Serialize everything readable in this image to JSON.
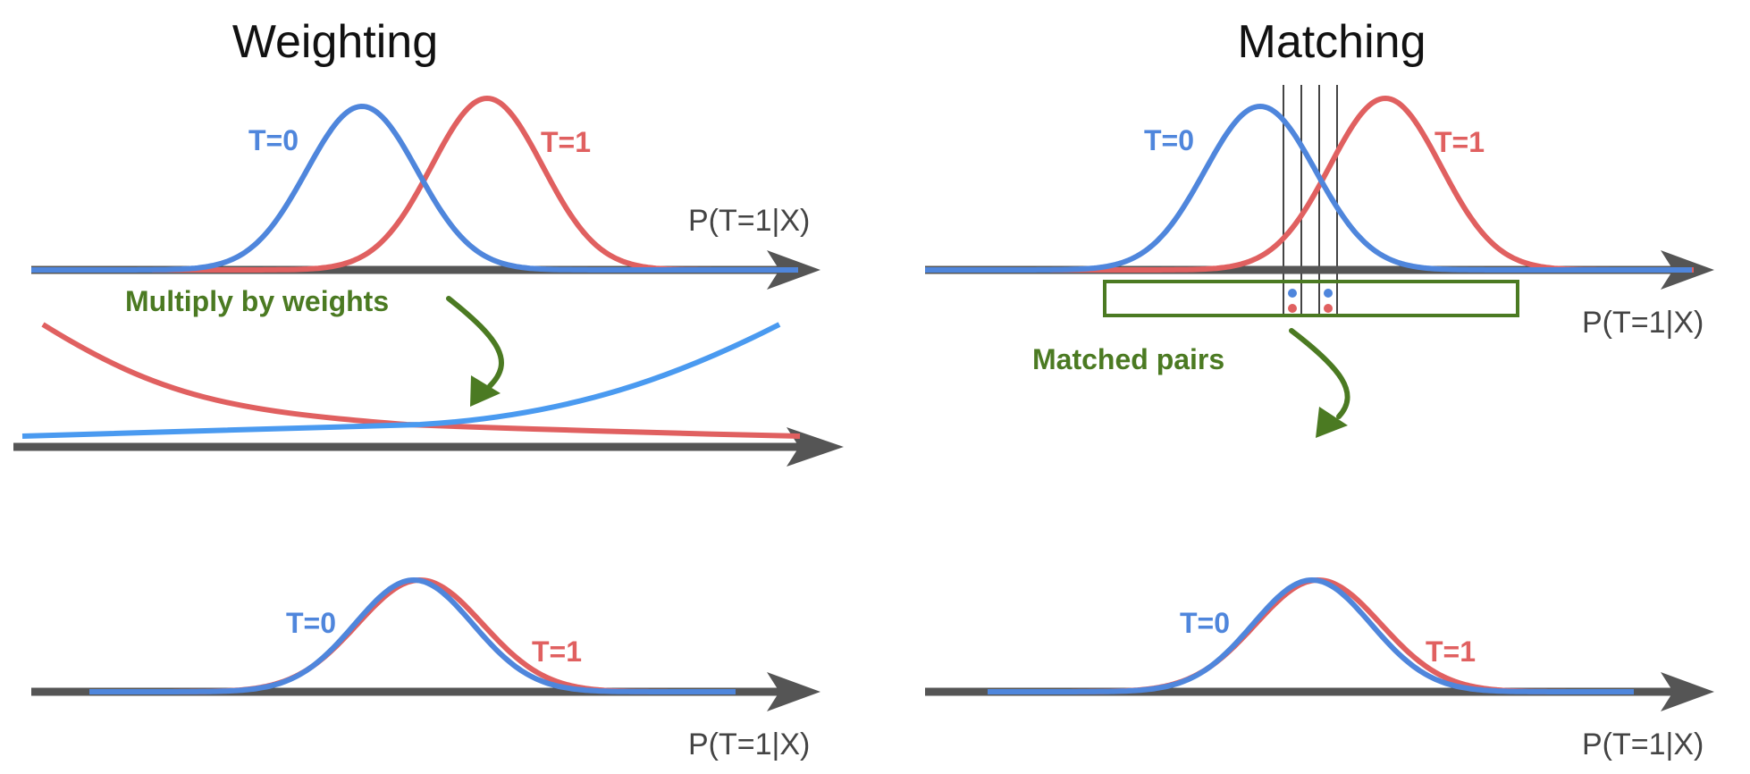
{
  "colors": {
    "blue": "#4f86dc",
    "red": "#e06060",
    "weight_blue": "#4a9af0",
    "green": "#4b7a22",
    "axis": "#555555",
    "vline": "#444444"
  },
  "weighting": {
    "title": "Weighting",
    "top": {
      "t0_label": "T=0",
      "t1_label": "T=1",
      "axis_label": "P(T=1|X)"
    },
    "annotation": "Multiply by weights",
    "bottom": {
      "t0_label": "T=0",
      "t1_label": "T=1",
      "axis_label": "P(T=1|X)"
    }
  },
  "matching": {
    "title": "Matching",
    "top": {
      "t0_label": "T=0",
      "t1_label": "T=1",
      "axis_label": "P(T=1|X)"
    },
    "annotation": "Matched pairs",
    "bottom": {
      "t0_label": "T=0",
      "t1_label": "T=1",
      "axis_label": "P(T=1|X)"
    }
  },
  "icons": {
    "weight_arrow": "curved-arrow-icon",
    "match_arrow": "curved-arrow-icon"
  }
}
